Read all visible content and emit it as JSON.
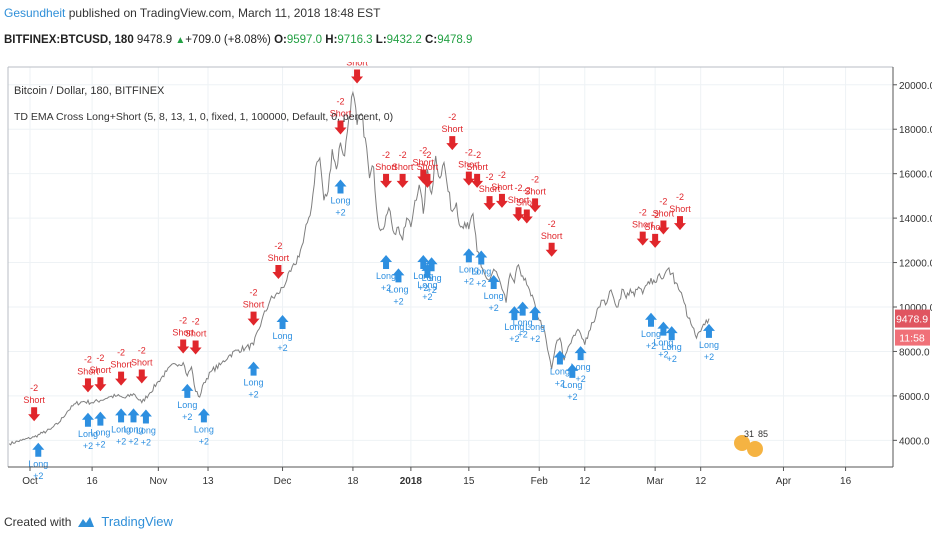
{
  "header": {
    "author": "Gesundheit",
    "published_text": "published on TradingView.com, March 11, 2018 18:48 EST"
  },
  "ticker": {
    "symbol": "BITFINEX:BTCUSD, 180",
    "last": "9478.9",
    "change": "+709.0 (+8.08%)",
    "o_label": "O:",
    "o": "9597.0",
    "h_label": "H:",
    "h": "9716.3",
    "l_label": "L:",
    "l": "9432.2",
    "c_label": "C:",
    "c": "9478.9"
  },
  "chart_legend": {
    "series_title": "Bitcoin / Dollar, 180, BITFINEX",
    "indicator": "TD EMA Cross Long+Short (5, 8, 13, 1, 0, fixed, 1, 100000, Default, 0, percent, 0)"
  },
  "price_badges": {
    "last": "9478.9",
    "countdown": "11:58"
  },
  "footer": {
    "created_with": "Created with",
    "brand": "TradingView"
  },
  "colors": {
    "price_line": "#7f7f7f",
    "short": "#e0262b",
    "long": "#2d8fe0",
    "badge": "#e05560",
    "grid": "#eef2f5"
  },
  "chart_data": {
    "type": "line",
    "title": "Bitcoin / Dollar, 180, BITFINEX",
    "ylim": [
      2800,
      20800
    ],
    "y_ticks": [
      4000,
      6000,
      8000,
      10000,
      12000,
      14000,
      16000,
      18000,
      20000
    ],
    "y_tick_labels": [
      "4000.0",
      "6000.0",
      "8000.0",
      "10000.0",
      "12000.0",
      "14000.0",
      "16000.0",
      "18000.0",
      "20000.0"
    ],
    "x_ticks": [
      {
        "day": 0,
        "label": "Oct",
        "bold": false
      },
      {
        "day": 15,
        "label": "16",
        "bold": false
      },
      {
        "day": 31,
        "label": "Nov",
        "bold": false
      },
      {
        "day": 43,
        "label": "13",
        "bold": false
      },
      {
        "day": 61,
        "label": "Dec",
        "bold": false
      },
      {
        "day": 78,
        "label": "18",
        "bold": false
      },
      {
        "day": 92,
        "label": "2018",
        "bold": true
      },
      {
        "day": 106,
        "label": "15",
        "bold": false
      },
      {
        "day": 123,
        "label": "Feb",
        "bold": false
      },
      {
        "day": 134,
        "label": "12",
        "bold": false
      },
      {
        "day": 151,
        "label": "Mar",
        "bold": false
      },
      {
        "day": 162,
        "label": "12",
        "bold": false
      },
      {
        "day": 182,
        "label": "Apr",
        "bold": false
      },
      {
        "day": 197,
        "label": "16",
        "bold": false
      }
    ],
    "price": [
      [
        -5,
        3850
      ],
      [
        -2,
        4000
      ],
      [
        1,
        4150
      ],
      [
        3,
        4330
      ],
      [
        5,
        4500
      ],
      [
        7,
        4800
      ],
      [
        9,
        5300
      ],
      [
        11,
        5650
      ],
      [
        13,
        5750
      ],
      [
        15,
        5700
      ],
      [
        17,
        5800
      ],
      [
        19,
        5950
      ],
      [
        21,
        6000
      ],
      [
        23,
        5900
      ],
      [
        25,
        6100
      ],
      [
        27,
        5700
      ],
      [
        29,
        6150
      ],
      [
        31,
        6650
      ],
      [
        33,
        7100
      ],
      [
        35,
        7450
      ],
      [
        37,
        7500
      ],
      [
        38,
        6900
      ],
      [
        39,
        7300
      ],
      [
        40,
        6200
      ],
      [
        41,
        5950
      ],
      [
        42,
        6600
      ],
      [
        44,
        7150
      ],
      [
        46,
        7400
      ],
      [
        48,
        7800
      ],
      [
        50,
        8050
      ],
      [
        52,
        8150
      ],
      [
        54,
        8300
      ],
      [
        56,
        9400
      ],
      [
        58,
        10300
      ],
      [
        60,
        10600
      ],
      [
        62,
        11200
      ],
      [
        64,
        11900
      ],
      [
        66,
        12900
      ],
      [
        67,
        13800
      ],
      [
        68,
        14500
      ],
      [
        69,
        16300
      ],
      [
        70,
        16700
      ],
      [
        71,
        14800
      ],
      [
        72,
        15200
      ],
      [
        73,
        17100
      ],
      [
        74,
        16200
      ],
      [
        75,
        17400
      ],
      [
        76,
        16800
      ],
      [
        77,
        18500
      ],
      [
        78,
        19650
      ],
      [
        79,
        18200
      ],
      [
        80,
        18700
      ],
      [
        81,
        17600
      ],
      [
        82,
        15800
      ],
      [
        83,
        16300
      ],
      [
        84,
        13900
      ],
      [
        85,
        13500
      ],
      [
        86,
        14100
      ],
      [
        87,
        14300
      ],
      [
        88,
        13300
      ],
      [
        89,
        13600
      ],
      [
        90,
        13000
      ],
      [
        91,
        14000
      ],
      [
        92,
        13600
      ],
      [
        93,
        14800
      ],
      [
        94,
        15500
      ],
      [
        95,
        14200
      ],
      [
        96,
        16200
      ],
      [
        97,
        15100
      ],
      [
        98,
        16800
      ],
      [
        99,
        15800
      ],
      [
        100,
        16500
      ],
      [
        101,
        15200
      ],
      [
        102,
        14300
      ],
      [
        103,
        14700
      ],
      [
        104,
        13600
      ],
      [
        105,
        13800
      ],
      [
        106,
        13500
      ],
      [
        107,
        14200
      ],
      [
        108,
        12500
      ],
      [
        109,
        11800
      ],
      [
        110,
        11400
      ],
      [
        111,
        11200
      ],
      [
        112,
        11700
      ],
      [
        113,
        11400
      ],
      [
        114,
        10800
      ],
      [
        115,
        10200
      ],
      [
        116,
        11500
      ],
      [
        117,
        11100
      ],
      [
        118,
        11900
      ],
      [
        119,
        11400
      ],
      [
        120,
        11000
      ],
      [
        121,
        10500
      ],
      [
        122,
        10100
      ],
      [
        123,
        9400
      ],
      [
        124,
        9100
      ],
      [
        125,
        8100
      ],
      [
        126,
        7200
      ],
      [
        127,
        8300
      ],
      [
        128,
        8600
      ],
      [
        129,
        7600
      ],
      [
        130,
        8200
      ],
      [
        131,
        8600
      ],
      [
        132,
        8900
      ],
      [
        133,
        8800
      ],
      [
        134,
        8300
      ],
      [
        135,
        8900
      ],
      [
        136,
        9300
      ],
      [
        137,
        9900
      ],
      [
        138,
        10300
      ],
      [
        139,
        10100
      ],
      [
        140,
        10700
      ],
      [
        141,
        10400
      ],
      [
        142,
        10000
      ],
      [
        143,
        10800
      ],
      [
        144,
        10400
      ],
      [
        145,
        10800
      ],
      [
        146,
        10500
      ],
      [
        147,
        10900
      ],
      [
        148,
        10600
      ],
      [
        149,
        11000
      ],
      [
        150,
        11300
      ],
      [
        151,
        11100
      ],
      [
        152,
        11500
      ],
      [
        153,
        11300
      ],
      [
        154,
        11700
      ],
      [
        155,
        11500
      ],
      [
        156,
        11100
      ],
      [
        157,
        10700
      ],
      [
        158,
        10200
      ],
      [
        159,
        9500
      ],
      [
        160,
        9100
      ],
      [
        161,
        8600
      ],
      [
        162,
        8900
      ],
      [
        163,
        9200
      ],
      [
        164,
        9479
      ]
    ],
    "signals": [
      {
        "type": "short",
        "day": 1,
        "price": 4500,
        "label": "Short",
        "value": "-2"
      },
      {
        "type": "long",
        "day": 2,
        "price": 4250,
        "label": "Long",
        "value": "+2"
      },
      {
        "type": "short",
        "day": 14,
        "price": 5800,
        "label": "Short",
        "value": "-2"
      },
      {
        "type": "short",
        "day": 17,
        "price": 5850,
        "label": "Short",
        "value": "-2"
      },
      {
        "type": "long",
        "day": 14,
        "price": 5600,
        "label": "Long",
        "value": "+2"
      },
      {
        "type": "long",
        "day": 17,
        "price": 5650,
        "label": "Long",
        "value": "+2"
      },
      {
        "type": "short",
        "day": 22,
        "price": 6100,
        "label": "Short",
        "value": "-2"
      },
      {
        "type": "short",
        "day": 27,
        "price": 6200,
        "label": "Short",
        "value": "-2"
      },
      {
        "type": "long",
        "day": 22,
        "price": 5800,
        "label": "Long",
        "value": "+2"
      },
      {
        "type": "long",
        "day": 25,
        "price": 5800,
        "label": "Long",
        "value": "+2"
      },
      {
        "type": "long",
        "day": 28,
        "price": 5750,
        "label": "Long",
        "value": "+2"
      },
      {
        "type": "short",
        "day": 37,
        "price": 7550,
        "label": "Short",
        "value": "-2"
      },
      {
        "type": "short",
        "day": 40,
        "price": 7500,
        "label": "Short",
        "value": "-2"
      },
      {
        "type": "long",
        "day": 38,
        "price": 6900,
        "label": "Long",
        "value": "+2"
      },
      {
        "type": "long",
        "day": 42,
        "price": 5800,
        "label": "Long",
        "value": "+2"
      },
      {
        "type": "short",
        "day": 54,
        "price": 8800,
        "label": "Short",
        "value": "-2"
      },
      {
        "type": "long",
        "day": 54,
        "price": 7900,
        "label": "Long",
        "value": "+2"
      },
      {
        "type": "short",
        "day": 60,
        "price": 10900,
        "label": "Short",
        "value": "-2"
      },
      {
        "type": "long",
        "day": 61,
        "price": 10000,
        "label": "Long",
        "value": "+2"
      },
      {
        "type": "short",
        "day": 75,
        "price": 17400,
        "label": "Short",
        "value": "-2"
      },
      {
        "type": "short",
        "day": 79,
        "price": 19700,
        "label": "Short",
        "value": "-2"
      },
      {
        "type": "long",
        "day": 75,
        "price": 16100,
        "label": "Long",
        "value": "+2"
      },
      {
        "type": "short",
        "day": 86,
        "price": 15000,
        "label": "Short",
        "value": "-2"
      },
      {
        "type": "short",
        "day": 90,
        "price": 15000,
        "label": "Short",
        "value": "-2"
      },
      {
        "type": "long",
        "day": 86,
        "price": 12700,
        "label": "Long",
        "value": "+2"
      },
      {
        "type": "long",
        "day": 89,
        "price": 12100,
        "label": "Long",
        "value": "+2"
      },
      {
        "type": "short",
        "day": 95,
        "price": 15200,
        "label": "Short",
        "value": "-2"
      },
      {
        "type": "short",
        "day": 96,
        "price": 15000,
        "label": "Short",
        "value": "-2"
      },
      {
        "type": "long",
        "day": 95,
        "price": 12700,
        "label": "Long",
        "value": "+2"
      },
      {
        "type": "long",
        "day": 97,
        "price": 12600,
        "label": "Long",
        "value": "+2"
      },
      {
        "type": "long",
        "day": 96,
        "price": 12300,
        "label": "Long",
        "value": "+2"
      },
      {
        "type": "short",
        "day": 102,
        "price": 16700,
        "label": "Short",
        "value": "-2"
      },
      {
        "type": "short",
        "day": 106,
        "price": 15100,
        "label": "Short",
        "value": "-2"
      },
      {
        "type": "short",
        "day": 108,
        "price": 15000,
        "label": "Short",
        "value": "-2"
      },
      {
        "type": "long",
        "day": 106,
        "price": 13000,
        "label": "Long",
        "value": "+2"
      },
      {
        "type": "long",
        "day": 109,
        "price": 12900,
        "label": "Long",
        "value": "+2"
      },
      {
        "type": "short",
        "day": 111,
        "price": 14000,
        "label": "Short",
        "value": "-2"
      },
      {
        "type": "short",
        "day": 114,
        "price": 14100,
        "label": "Short",
        "value": "-2"
      },
      {
        "type": "short",
        "day": 118,
        "price": 13500,
        "label": "Short",
        "value": "-2"
      },
      {
        "type": "short",
        "day": 120,
        "price": 13400,
        "label": "Short",
        "value": "-2"
      },
      {
        "type": "short",
        "day": 122,
        "price": 13900,
        "label": "Short",
        "value": "-2"
      },
      {
        "type": "long",
        "day": 112,
        "price": 11800,
        "label": "Long",
        "value": "+2"
      },
      {
        "type": "long",
        "day": 117,
        "price": 10400,
        "label": "Long",
        "value": "+2"
      },
      {
        "type": "long",
        "day": 119,
        "price": 10600,
        "label": "Long",
        "value": "+2"
      },
      {
        "type": "long",
        "day": 122,
        "price": 10400,
        "label": "Long",
        "value": "+2"
      },
      {
        "type": "short",
        "day": 126,
        "price": 11900,
        "label": "Short",
        "value": "-2"
      },
      {
        "type": "long",
        "day": 128,
        "price": 8400,
        "label": "Long",
        "value": "+2"
      },
      {
        "type": "long",
        "day": 131,
        "price": 7800,
        "label": "Long",
        "value": "+2"
      },
      {
        "type": "long",
        "day": 133,
        "price": 8600,
        "label": "Long",
        "value": "+2"
      },
      {
        "type": "short",
        "day": 148,
        "price": 12400,
        "label": "Short",
        "value": "-2"
      },
      {
        "type": "short",
        "day": 151,
        "price": 12300,
        "label": "Short",
        "value": "-2"
      },
      {
        "type": "short",
        "day": 153,
        "price": 12900,
        "label": "Short",
        "value": "-2"
      },
      {
        "type": "short",
        "day": 157,
        "price": 13100,
        "label": "Short",
        "value": "-2"
      },
      {
        "type": "long",
        "day": 150,
        "price": 10100,
        "label": "Long",
        "value": "+2"
      },
      {
        "type": "long",
        "day": 153,
        "price": 9700,
        "label": "Long",
        "value": "+2"
      },
      {
        "type": "long",
        "day": 155,
        "price": 9500,
        "label": "Long",
        "value": "+2"
      },
      {
        "type": "long",
        "day": 164,
        "price": 9600,
        "label": "Long",
        "value": "+2"
      }
    ],
    "marker_flags": [
      "31",
      "85"
    ]
  }
}
